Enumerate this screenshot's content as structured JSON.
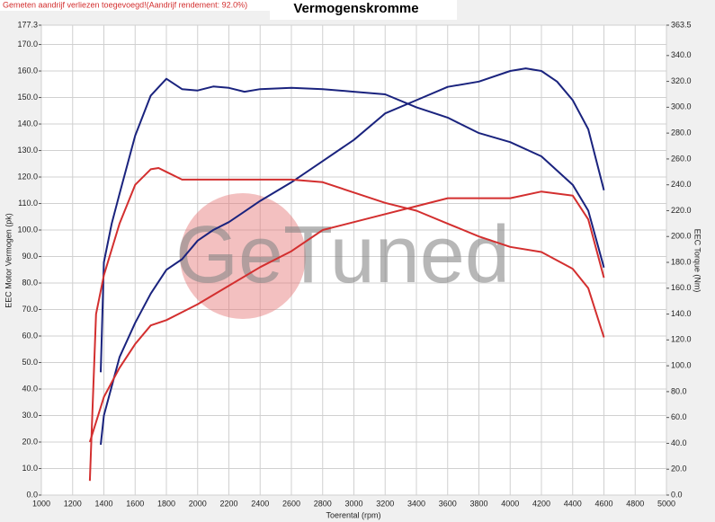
{
  "chart_data": {
    "type": "line",
    "title": "Vermogenskromme",
    "note": "Gemeten aandrijf verliezen toegevoegd!(Aandrijf rendement: 92.0%)",
    "watermark": "GeTuned",
    "x_label": "Toerental (rpm)",
    "y_label": "EEC Motor Vermogen (pk)",
    "y2_label": "EEC Torque (Nm)",
    "xlim": [
      1000,
      5000
    ],
    "xticks": [
      1000,
      1200,
      1400,
      1600,
      1800,
      2000,
      2200,
      2400,
      2600,
      2800,
      3000,
      3200,
      3400,
      3600,
      3800,
      4000,
      4200,
      4400,
      4600,
      4800,
      5000
    ],
    "ylim": [
      0,
      177.3
    ],
    "yticks": [
      {
        "value": 0,
        "label": "0.0"
      },
      {
        "value": 10,
        "label": "10.0"
      },
      {
        "value": 20,
        "label": "20.0"
      },
      {
        "value": 30,
        "label": "30.0"
      },
      {
        "value": 40,
        "label": "40.0"
      },
      {
        "value": 50,
        "label": "50.0"
      },
      {
        "value": 60,
        "label": "60.0"
      },
      {
        "value": 70,
        "label": "70.0"
      },
      {
        "value": 80,
        "label": "80.0"
      },
      {
        "value": 90,
        "label": "90.0"
      },
      {
        "value": 100,
        "label": "100.0"
      },
      {
        "value": 110,
        "label": "110.0"
      },
      {
        "value": 120,
        "label": "120.0"
      },
      {
        "value": 130,
        "label": "130.0"
      },
      {
        "value": 140,
        "label": "140.0"
      },
      {
        "value": 150,
        "label": "150.0"
      },
      {
        "value": 160,
        "label": "160.0"
      },
      {
        "value": 170,
        "label": "170.0"
      },
      177.3
    ],
    "y2lim": [
      0,
      363.5
    ],
    "y2ticks": [
      {
        "value": 0,
        "label": "0.0"
      },
      {
        "value": 20,
        "label": "20.0"
      },
      {
        "value": 40,
        "label": "40.0"
      },
      {
        "value": 60,
        "label": "60.0"
      },
      {
        "value": 80,
        "label": "80.0"
      },
      {
        "value": 100,
        "label": "100.0"
      },
      {
        "value": 120,
        "label": "120.0"
      },
      {
        "value": 140,
        "label": "140.0"
      },
      {
        "value": 160,
        "label": "160.0"
      },
      {
        "value": 180,
        "label": "180.0"
      },
      {
        "value": 200,
        "label": "200.0"
      },
      {
        "value": 220,
        "label": "220.0"
      },
      {
        "value": 240,
        "label": "240.0"
      },
      {
        "value": 260,
        "label": "260.0"
      },
      {
        "value": 280,
        "label": "280.0"
      },
      {
        "value": 300,
        "label": "300.0"
      },
      {
        "value": 320,
        "label": "320.0"
      },
      {
        "value": 340,
        "label": "340.0"
      },
      363.5
    ],
    "grid": true,
    "series": [
      {
        "color": "#1a237e",
        "axis": "y",
        "x": [
          1380,
          1400,
          1500,
          1600,
          1700,
          1800,
          1900,
          2000,
          2100,
          2200,
          2300,
          2400,
          2600,
          2800,
          3000,
          3200,
          3400,
          3600,
          3800,
          4000,
          4100,
          4200,
          4300,
          4400,
          4500,
          4600
        ],
        "values": [
          19,
          30,
          52,
          65,
          76,
          85,
          89,
          96,
          100,
          103,
          107,
          111,
          118,
          126,
          134,
          144,
          149,
          154,
          156,
          160,
          161,
          160,
          156,
          149,
          138,
          115
        ]
      },
      {
        "color": "#1a237e",
        "axis": "y2",
        "x": [
          1380,
          1400,
          1450,
          1500,
          1600,
          1700,
          1800,
          1900,
          2000,
          2100,
          2200,
          2300,
          2400,
          2600,
          2800,
          3000,
          3200,
          3400,
          3600,
          3800,
          4000,
          4200,
          4400,
          4500,
          4600
        ],
        "values": [
          95,
          180,
          210,
          233,
          278,
          309,
          322,
          314,
          313,
          316,
          315,
          312,
          314,
          315,
          314,
          312,
          310,
          300,
          292,
          280,
          273,
          262,
          240,
          220,
          176
        ]
      },
      {
        "color": "#d32f2f",
        "axis": "y",
        "x": [
          1310,
          1400,
          1500,
          1600,
          1700,
          1800,
          1900,
          2000,
          2200,
          2400,
          2600,
          2800,
          3000,
          3200,
          3400,
          3600,
          3800,
          4000,
          4200,
          4400,
          4500,
          4600
        ],
        "values": [
          20,
          37,
          48,
          57,
          64,
          66,
          69,
          72,
          79,
          86,
          92,
          100,
          103,
          106,
          109,
          112,
          112,
          112,
          114.5,
          113,
          104,
          82
        ]
      },
      {
        "color": "#d32f2f",
        "axis": "y2",
        "x": [
          1310,
          1350,
          1400,
          1500,
          1600,
          1700,
          1750,
          1800,
          1900,
          2000,
          2200,
          2400,
          2600,
          2800,
          3000,
          3200,
          3400,
          3600,
          3800,
          4000,
          4200,
          4400,
          4500,
          4600
        ],
        "values": [
          11,
          140,
          170,
          210,
          240,
          252,
          253,
          250,
          244,
          244,
          244,
          244,
          244,
          242,
          234,
          226,
          220,
          210,
          200,
          192,
          188,
          175,
          160,
          122
        ]
      }
    ]
  }
}
